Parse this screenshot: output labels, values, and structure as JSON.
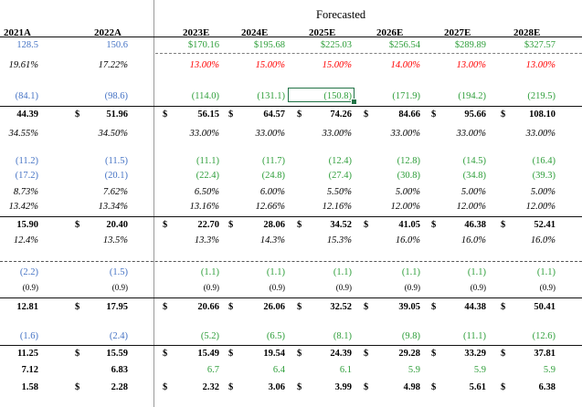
{
  "colors": {
    "blue": "#4472c4",
    "green": "#2e9e3a",
    "red": "#ff0000",
    "black": "#000000"
  },
  "header": {
    "forecasted_label": "Forecasted",
    "columns": [
      "2021A",
      "2022A",
      "2023E",
      "2024E",
      "2025E",
      "2026E",
      "2027E",
      "2028E"
    ]
  },
  "rows": [
    {
      "id": "r1",
      "cells": [
        "128.5",
        "150.6",
        "$170.16",
        "$195.68",
        "$225.03",
        "$256.54",
        "$289.89",
        "$327.57"
      ],
      "colors": [
        "blue",
        "blue",
        "green",
        "green",
        "green",
        "green",
        "green",
        "green"
      ]
    },
    {
      "id": "r2",
      "cells": [
        "19.61%",
        "17.22%",
        "13.00%",
        "15.00%",
        "15.00%",
        "14.00%",
        "13.00%",
        "13.00%"
      ],
      "colors": [
        "black",
        "black",
        "red",
        "red",
        "red",
        "red",
        "red",
        "red"
      ],
      "italic": true
    },
    {
      "id": "r3",
      "cells": [
        "(84.1)",
        "(98.6)",
        "(114.0)",
        "(131.1)",
        "(150.8)",
        "(171.9)",
        "(194.2)",
        "(219.5)"
      ],
      "colors": [
        "blue",
        "blue",
        "green",
        "green",
        "green",
        "green",
        "green",
        "green"
      ]
    },
    {
      "id": "r4",
      "cells": [
        "44.39",
        "51.96",
        "56.15",
        "64.57",
        "74.26",
        "84.66",
        "95.66",
        "108.10"
      ],
      "colors": [
        "black",
        "black",
        "black",
        "black",
        "black",
        "black",
        "black",
        "black"
      ],
      "bold": true,
      "dollar": "$"
    },
    {
      "id": "r5",
      "cells": [
        "34.55%",
        "34.50%",
        "33.00%",
        "33.00%",
        "33.00%",
        "33.00%",
        "33.00%",
        "33.00%"
      ],
      "colors": [
        "black",
        "black",
        "black",
        "black",
        "black",
        "black",
        "black",
        "black"
      ],
      "italic": true
    },
    {
      "id": "r6",
      "cells": [
        "(11.2)",
        "(11.5)",
        "(11.1)",
        "(11.7)",
        "(12.4)",
        "(12.8)",
        "(14.5)",
        "(16.4)"
      ],
      "colors": [
        "blue",
        "blue",
        "green",
        "green",
        "green",
        "green",
        "green",
        "green"
      ]
    },
    {
      "id": "r7",
      "cells": [
        "(17.2)",
        "(20.1)",
        "(22.4)",
        "(24.8)",
        "(27.4)",
        "(30.8)",
        "(34.8)",
        "(39.3)"
      ],
      "colors": [
        "blue",
        "blue",
        "green",
        "green",
        "green",
        "green",
        "green",
        "green"
      ]
    },
    {
      "id": "r8",
      "cells": [
        "8.73%",
        "7.62%",
        "6.50%",
        "6.00%",
        "5.50%",
        "5.00%",
        "5.00%",
        "5.00%"
      ],
      "colors": [
        "black",
        "black",
        "black",
        "black",
        "black",
        "black",
        "black",
        "black"
      ],
      "italic": true
    },
    {
      "id": "r9",
      "cells": [
        "13.42%",
        "13.34%",
        "13.16%",
        "12.66%",
        "12.16%",
        "12.00%",
        "12.00%",
        "12.00%"
      ],
      "colors": [
        "black",
        "black",
        "black",
        "black",
        "black",
        "black",
        "black",
        "black"
      ],
      "italic": true
    },
    {
      "id": "r10",
      "cells": [
        "15.90",
        "20.40",
        "22.70",
        "28.06",
        "34.52",
        "41.05",
        "46.38",
        "52.41"
      ],
      "colors": [
        "black",
        "black",
        "black",
        "black",
        "black",
        "black",
        "black",
        "black"
      ],
      "bold": true,
      "dollar": "$"
    },
    {
      "id": "r11",
      "cells": [
        "12.4%",
        "13.5%",
        "13.3%",
        "14.3%",
        "15.3%",
        "16.0%",
        "16.0%",
        "16.0%"
      ],
      "colors": [
        "black",
        "black",
        "black",
        "black",
        "black",
        "black",
        "black",
        "black"
      ],
      "italic": true
    },
    {
      "id": "r12",
      "cells": [
        "(2.2)",
        "(1.5)",
        "(1.1)",
        "(1.1)",
        "(1.1)",
        "(1.1)",
        "(1.1)",
        "(1.1)"
      ],
      "colors": [
        "blue",
        "blue",
        "green",
        "green",
        "green",
        "green",
        "green",
        "green"
      ]
    },
    {
      "id": "r13",
      "cells": [
        "(0.9)",
        "(0.9)",
        "(0.9)",
        "(0.9)",
        "(0.9)",
        "(0.9)",
        "(0.9)",
        "(0.9)"
      ],
      "colors": [
        "black",
        "black",
        "black",
        "black",
        "black",
        "black",
        "black",
        "black"
      ],
      "small": true
    },
    {
      "id": "r14",
      "cells": [
        "12.81",
        "17.95",
        "20.66",
        "26.06",
        "32.52",
        "39.05",
        "44.38",
        "50.41"
      ],
      "colors": [
        "black",
        "black",
        "black",
        "black",
        "black",
        "black",
        "black",
        "black"
      ],
      "bold": true,
      "dollar": "$"
    },
    {
      "id": "r15",
      "cells": [
        "(1.6)",
        "(2.4)",
        "(5.2)",
        "(6.5)",
        "(8.1)",
        "(9.8)",
        "(11.1)",
        "(12.6)"
      ],
      "colors": [
        "blue",
        "blue",
        "green",
        "green",
        "green",
        "green",
        "green",
        "green"
      ]
    },
    {
      "id": "r16",
      "cells": [
        "11.25",
        "15.59",
        "15.49",
        "19.54",
        "24.39",
        "29.28",
        "33.29",
        "37.81"
      ],
      "colors": [
        "black",
        "black",
        "black",
        "black",
        "black",
        "black",
        "black",
        "black"
      ],
      "bold": true,
      "dollar": "$"
    },
    {
      "id": "r17",
      "cells": [
        "7.12",
        "6.83",
        "6.7",
        "6.4",
        "6.1",
        "5.9",
        "5.9",
        "5.9"
      ],
      "colors": [
        "black",
        "black",
        "green",
        "green",
        "green",
        "green",
        "green",
        "green"
      ],
      "boldFirst2": true
    },
    {
      "id": "r18",
      "cells": [
        "1.58",
        "2.28",
        "2.32",
        "3.06",
        "3.99",
        "4.98",
        "5.61",
        "6.38"
      ],
      "colors": [
        "black",
        "black",
        "black",
        "black",
        "black",
        "black",
        "black",
        "black"
      ],
      "bold": true,
      "dollar": "$"
    }
  ]
}
